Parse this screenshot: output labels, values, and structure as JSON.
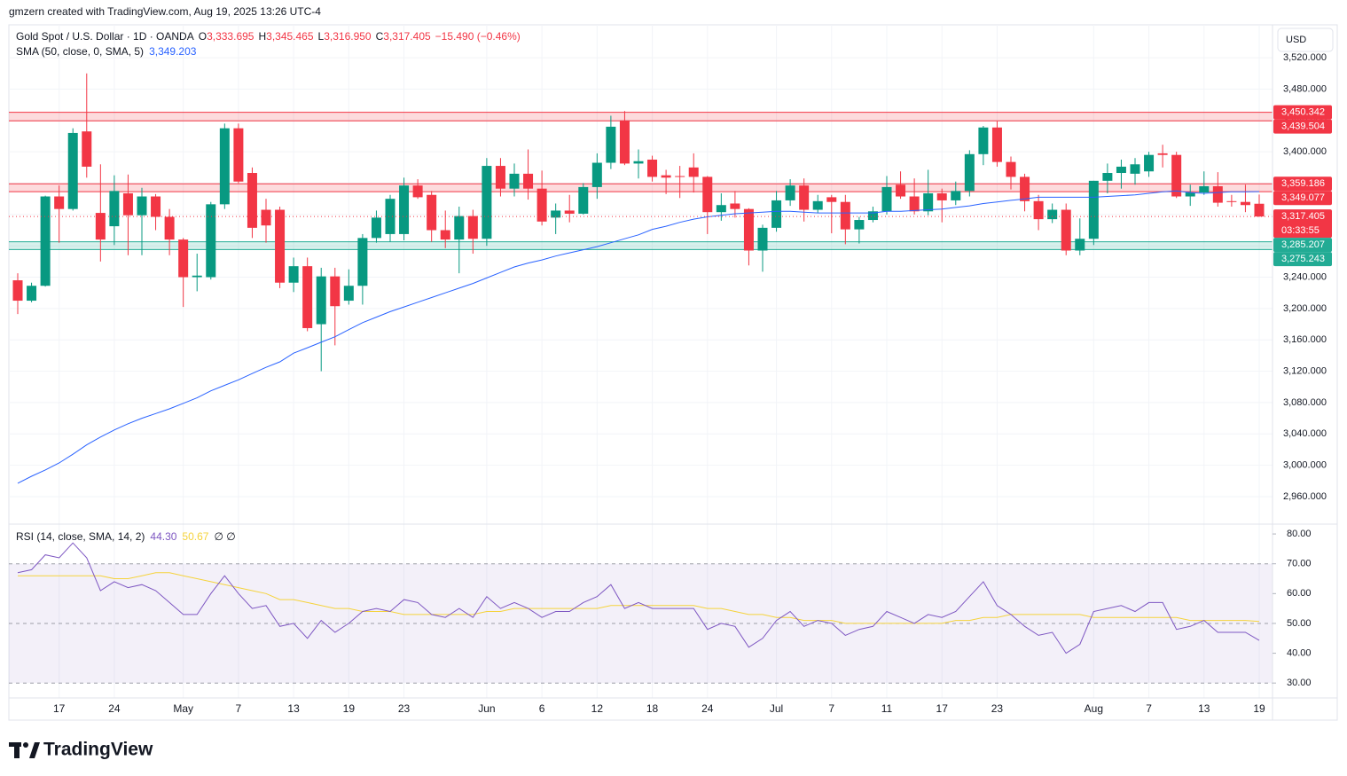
{
  "header": {
    "credit": "gmzern created with TradingView.com, Aug 19, 2025 13:26 UTC-4",
    "logo": "TradingView"
  },
  "chart_data": [
    {
      "type": "candlestick",
      "title": "Gold Spot / U.S. Dollar · 1D · OANDA",
      "ohlc_legend": [
        "O",
        "3,333.695",
        "H",
        "3,345.465",
        "L",
        "3,316.950",
        "C",
        "3,317.405"
      ],
      "change": "−15.490 (−0.46%)",
      "currency": "USD",
      "categories": [
        null,
        null,
        null,
        "17",
        null,
        null,
        null,
        "24",
        null,
        null,
        null,
        null,
        "May",
        null,
        null,
        null,
        "7",
        null,
        null,
        null,
        "13",
        null,
        null,
        null,
        "19",
        null,
        null,
        null,
        "23",
        null,
        null,
        null,
        null,
        null,
        "Jun",
        null,
        null,
        null,
        "6",
        null,
        null,
        null,
        "12",
        null,
        null,
        null,
        "18",
        null,
        null,
        null,
        "24",
        null,
        null,
        null,
        null,
        "Jul",
        null,
        null,
        null,
        "7",
        null,
        null,
        null,
        "11",
        null,
        null,
        null,
        "17",
        null,
        null,
        null,
        "23",
        null,
        null,
        null,
        null,
        null,
        null,
        "Aug",
        null,
        null,
        null,
        "7",
        null,
        null,
        null,
        "13",
        null,
        null,
        null,
        "19"
      ],
      "series": [
        {
          "up_color": "#089981",
          "down_color": "#f23645",
          "open": [
            3236,
            3210,
            3229,
            3343,
            3327,
            3426,
            3322,
            3305,
            3347,
            3319,
            3343,
            3317,
            3288,
            3240,
            3240,
            3333,
            3430,
            3373,
            3326,
            3326,
            3233,
            3254,
            3180,
            3241,
            3210,
            3229,
            3290,
            3295,
            3295,
            3357,
            3345,
            3300,
            3288,
            3318,
            3289,
            3382,
            3353,
            3372,
            3353,
            3316,
            3325,
            3321,
            3355,
            3386,
            3440,
            3385,
            3390,
            3370,
            3369,
            3380,
            3368,
            3323,
            3334,
            3327,
            3274,
            3303,
            3338,
            3357,
            3326,
            3342,
            3336,
            3301,
            3313,
            3324,
            3358,
            3343,
            3324,
            3347,
            3338,
            3350,
            3397,
            3431,
            3387,
            3368,
            3337,
            3314,
            3326,
            3274,
            3289,
            3363,
            3373,
            3372,
            3375,
            3398,
            3396,
            3343,
            3348,
            3356,
            3337,
            3336,
            3333.695
          ],
          "high": [
            3245,
            3233,
            3344,
            3357,
            3430,
            3500,
            3384,
            3370,
            3371,
            3354,
            3346,
            3327,
            3290,
            3270,
            3336,
            3436,
            3436,
            3380,
            3340,
            3330,
            3265,
            3265,
            3252,
            3252,
            3250,
            3295,
            3325,
            3345,
            3367,
            3365,
            3350,
            3325,
            3330,
            3326,
            3392,
            3392,
            3385,
            3403,
            3376,
            3334,
            3345,
            3360,
            3398,
            3446,
            3452,
            3403,
            3395,
            3377,
            3382,
            3398,
            3369,
            3347,
            3350,
            3328,
            3307,
            3350,
            3365,
            3366,
            3345,
            3345,
            3345,
            3317,
            3330,
            3369,
            3375,
            3366,
            3377,
            3353,
            3362,
            3402,
            3433,
            3439,
            3394,
            3372,
            3345,
            3334,
            3334,
            3315,
            3363,
            3385,
            3390,
            3392,
            3400,
            3409,
            3400,
            3358,
            3375,
            3374,
            3345,
            3358,
            3345.465
          ],
          "low": [
            3193,
            3208,
            3228,
            3284,
            3325,
            3367,
            3260,
            3281,
            3268,
            3268,
            3300,
            3268,
            3202,
            3222,
            3237,
            3327,
            3360,
            3290,
            3284,
            3226,
            3221,
            3171,
            3120,
            3153,
            3205,
            3205,
            3284,
            3285,
            3287,
            3340,
            3285,
            3277,
            3245,
            3270,
            3280,
            3343,
            3343,
            3339,
            3306,
            3295,
            3310,
            3320,
            3340,
            3378,
            3383,
            3366,
            3362,
            3346,
            3341,
            3348,
            3295,
            3312,
            3316,
            3255,
            3247,
            3298,
            3331,
            3311,
            3322,
            3296,
            3282,
            3283,
            3310,
            3320,
            3340,
            3320,
            3319,
            3310,
            3332,
            3343,
            3383,
            3381,
            3352,
            3324,
            3300,
            3309,
            3268,
            3268,
            3281,
            3347,
            3353,
            3358,
            3368,
            3380,
            3341,
            3331,
            3345,
            3330,
            3330,
            3323,
            3316.95
          ],
          "close": [
            3210,
            3229,
            3343,
            3327,
            3424,
            3381,
            3288,
            3350,
            3319,
            3343,
            3317,
            3288,
            3240,
            3242,
            3333,
            3430,
            3362,
            3303,
            3306,
            3233,
            3254,
            3175,
            3241,
            3203,
            3229,
            3290,
            3316,
            3340,
            3357,
            3342,
            3300,
            3288,
            3318,
            3289,
            3382,
            3353,
            3372,
            3353,
            3311,
            3325,
            3321,
            3355,
            3386,
            3432,
            3385,
            3388,
            3368,
            3367,
            3368,
            3368,
            3323,
            3332,
            3327,
            3274,
            3303,
            3338,
            3357,
            3326,
            3337,
            3336,
            3301,
            3313,
            3324,
            3355,
            3343,
            3324,
            3347,
            3338,
            3350,
            3397,
            3431,
            3387,
            3368,
            3337,
            3314,
            3326,
            3274,
            3289,
            3363,
            3373,
            3381,
            3384,
            3396,
            3396,
            3343,
            3348,
            3356,
            3335,
            3336,
            3332,
            3317.405
          ]
        }
      ],
      "overlays": [
        {
          "type": "line",
          "name": "SMA (50, close, 0, SMA, 5)",
          "value_label": "3,349.203",
          "color": "#2962ff",
          "values": [
            2977,
            2986,
            2994,
            3003,
            3014,
            3026,
            3036,
            3045,
            3053,
            3060,
            3066,
            3072,
            3079,
            3086,
            3095,
            3102,
            3109,
            3117,
            3125,
            3132,
            3143,
            3150,
            3157,
            3164,
            3173,
            3182,
            3189,
            3196,
            3202,
            3208,
            3214,
            3220,
            3226,
            3232,
            3239,
            3246,
            3253,
            3258,
            3262,
            3267,
            3271,
            3275,
            3279,
            3284,
            3289,
            3294,
            3301,
            3305,
            3310,
            3314,
            3317,
            3319,
            3321,
            3322,
            3323,
            3324,
            3324,
            3323,
            3322,
            3322,
            3322,
            3322,
            3322,
            3324,
            3324,
            3325,
            3326,
            3327,
            3329,
            3331,
            3334,
            3336,
            3338,
            3340,
            3342,
            3342,
            3342,
            3342,
            3342,
            3343,
            3344,
            3345,
            3347,
            3349,
            3350,
            3348,
            3347,
            3348,
            3349,
            3349,
            3349.203
          ]
        }
      ],
      "zones": [
        {
          "color": "#f23645",
          "bounds": [
            {
              "value": 3439.504,
              "label": "3,439.504"
            },
            {
              "value": 3450.342,
              "label": "3,450.342"
            }
          ]
        },
        {
          "color": "#f23645",
          "bounds": [
            {
              "value": 3349.077,
              "label": "3,349.077"
            },
            {
              "value": 3359.186,
              "label": "3,359.186"
            }
          ]
        },
        {
          "color": "#22ab94",
          "bounds": [
            {
              "value": 3275.243,
              "label": "3,275.243"
            },
            {
              "value": 3285.207,
              "label": "3,285.207"
            }
          ]
        }
      ],
      "last_price": {
        "value": 3317.405,
        "label": "3,317.405"
      },
      "countdown": "03:33:55",
      "grid": true,
      "ylim": [
        2926,
        3562
      ],
      "yticks": [
        {
          "value": 2960,
          "label": "2,960.000"
        },
        {
          "value": 3000,
          "label": "3,000.000"
        },
        {
          "value": 3040,
          "label": "3,040.000"
        },
        {
          "value": 3080,
          "label": "3,080.000"
        },
        {
          "value": 3120,
          "label": "3,120.000"
        },
        {
          "value": 3160,
          "label": "3,160.000"
        },
        {
          "value": 3200,
          "label": "3,200.000"
        },
        {
          "value": 3240,
          "label": "3,240.000"
        },
        {
          "value": 3280,
          "label": "3,280.000"
        },
        {
          "value": 3320,
          "label": "3,320.000"
        },
        {
          "value": 3360,
          "label": "3,360.000"
        },
        {
          "value": 3400,
          "label": "3,400.000"
        },
        {
          "value": 3440,
          "label": "3,440.000"
        },
        {
          "value": 3480,
          "label": "3,480.000"
        },
        {
          "value": 3520,
          "label": "3,520.000"
        }
      ]
    },
    {
      "type": "line",
      "title": "RSI (14, close, SMA, 14, 2)",
      "flags": "∅ ∅",
      "series": [
        {
          "color": "#7e57c2",
          "value_label": "44.30",
          "values": [
            67,
            68,
            73,
            72,
            77,
            72,
            61,
            64,
            62,
            63,
            61,
            57,
            53,
            53,
            60,
            66,
            60,
            55,
            56,
            49,
            50,
            45,
            51,
            47,
            50,
            54,
            55,
            54,
            58,
            57,
            53,
            52,
            55,
            52,
            59,
            55,
            57,
            55,
            52,
            54,
            54,
            57,
            59,
            63,
            55,
            57,
            55,
            55,
            55,
            55,
            48,
            50,
            49,
            42,
            45,
            51,
            54,
            49,
            51,
            50,
            46,
            48,
            49,
            54,
            52,
            50,
            53,
            52,
            54,
            59,
            64,
            56,
            53,
            49,
            46,
            47,
            40,
            43,
            54,
            55,
            56,
            54,
            57,
            57,
            48,
            49,
            51,
            47,
            47,
            47,
            44.3
          ]
        },
        {
          "color": "#f5d33c",
          "value_label": "50.67",
          "values": [
            66,
            66,
            66,
            66,
            66,
            66,
            66,
            65,
            65,
            66,
            67,
            67,
            66,
            65,
            64,
            63,
            62,
            61,
            60,
            58,
            58,
            57,
            56,
            55,
            55,
            54,
            54,
            54,
            53,
            53,
            53,
            53,
            53,
            53,
            54,
            54,
            55,
            55,
            55,
            55,
            55,
            55,
            55,
            56,
            56,
            56,
            56,
            56,
            56,
            56,
            55,
            55,
            54,
            53,
            53,
            52,
            52,
            51,
            51,
            51,
            50,
            50,
            50,
            50,
            50,
            50,
            50,
            50,
            51,
            51,
            52,
            52,
            53,
            53,
            53,
            53,
            53,
            53,
            52,
            52,
            52,
            52,
            52,
            52,
            52,
            51,
            51,
            51,
            51,
            51,
            50.67
          ]
        }
      ],
      "band": {
        "upper": 70,
        "middle": 50,
        "lower": 30,
        "color": "#7e57c2"
      },
      "ylim": [
        25,
        83
      ],
      "yticks": [
        {
          "value": 30,
          "label": "30.00"
        },
        {
          "value": 40,
          "label": "40.00"
        },
        {
          "value": 50,
          "label": "50.00"
        },
        {
          "value": 60,
          "label": "60.00"
        },
        {
          "value": 70,
          "label": "70.00"
        },
        {
          "value": 80,
          "label": "80.00"
        }
      ]
    }
  ]
}
